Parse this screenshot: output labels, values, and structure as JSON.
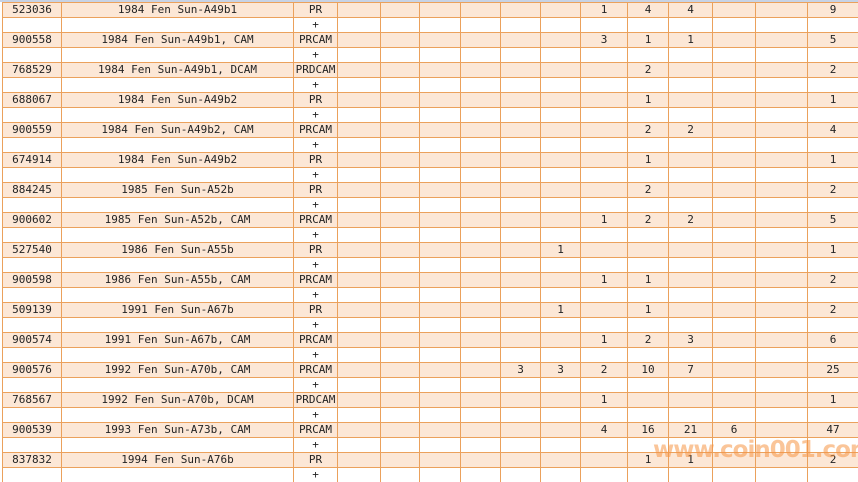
{
  "colors": {
    "row_fill": "#fce7d6",
    "grid_border": "#eba15c",
    "text": "#232323",
    "watermark": "#f79646",
    "top_strip": "#c7d3e6"
  },
  "watermark": {
    "text": "www.coin001.com"
  },
  "table": {
    "plus_symbol": "+",
    "numeric_column_count": 11,
    "records": [
      {
        "id": "523036",
        "description": "1984 Fen Sun-A49b1",
        "grade": "PR",
        "counts": [
          "",
          "",
          "",
          "",
          "",
          "",
          "1",
          "4",
          "4",
          "",
          ""
        ],
        "total": "9"
      },
      {
        "id": "900558",
        "description": "1984 Fen Sun-A49b1, CAM",
        "grade": "PRCAM",
        "counts": [
          "",
          "",
          "",
          "",
          "",
          "",
          "3",
          "1",
          "1",
          "",
          ""
        ],
        "total": "5"
      },
      {
        "id": "768529",
        "description": "1984 Fen Sun-A49b1, DCAM",
        "grade": "PRDCAM",
        "counts": [
          "",
          "",
          "",
          "",
          "",
          "",
          "",
          "2",
          "",
          "",
          ""
        ],
        "total": "2"
      },
      {
        "id": "688067",
        "description": "1984 Fen Sun-A49b2",
        "grade": "PR",
        "counts": [
          "",
          "",
          "",
          "",
          "",
          "",
          "",
          "1",
          "",
          "",
          ""
        ],
        "total": "1"
      },
      {
        "id": "900559",
        "description": "1984 Fen Sun-A49b2, CAM",
        "grade": "PRCAM",
        "counts": [
          "",
          "",
          "",
          "",
          "",
          "",
          "",
          "2",
          "2",
          "",
          ""
        ],
        "total": "4"
      },
      {
        "id": "674914",
        "description": "1984 Fen Sun-A49b2",
        "grade": "PR",
        "counts": [
          "",
          "",
          "",
          "",
          "",
          "",
          "",
          "1",
          "",
          "",
          ""
        ],
        "total": "1"
      },
      {
        "id": "884245",
        "description": "1985 Fen Sun-A52b",
        "grade": "PR",
        "counts": [
          "",
          "",
          "",
          "",
          "",
          "",
          "",
          "2",
          "",
          "",
          ""
        ],
        "total": "2"
      },
      {
        "id": "900602",
        "description": "1985 Fen Sun-A52b, CAM",
        "grade": "PRCAM",
        "counts": [
          "",
          "",
          "",
          "",
          "",
          "",
          "1",
          "2",
          "2",
          "",
          ""
        ],
        "total": "5"
      },
      {
        "id": "527540",
        "description": "1986 Fen Sun-A55b",
        "grade": "PR",
        "counts": [
          "",
          "",
          "",
          "",
          "",
          "1",
          "",
          "",
          "",
          "",
          ""
        ],
        "total": "1"
      },
      {
        "id": "900598",
        "description": "1986 Fen Sun-A55b, CAM",
        "grade": "PRCAM",
        "counts": [
          "",
          "",
          "",
          "",
          "",
          "",
          "1",
          "1",
          "",
          "",
          ""
        ],
        "total": "2"
      },
      {
        "id": "509139",
        "description": "1991 Fen Sun-A67b",
        "grade": "PR",
        "counts": [
          "",
          "",
          "",
          "",
          "",
          "1",
          "",
          "1",
          "",
          "",
          ""
        ],
        "total": "2"
      },
      {
        "id": "900574",
        "description": "1991 Fen Sun-A67b, CAM",
        "grade": "PRCAM",
        "counts": [
          "",
          "",
          "",
          "",
          "",
          "",
          "1",
          "2",
          "3",
          "",
          ""
        ],
        "total": "6"
      },
      {
        "id": "900576",
        "description": "1992 Fen Sun-A70b, CAM",
        "grade": "PRCAM",
        "counts": [
          "",
          "",
          "",
          "",
          "3",
          "3",
          "2",
          "10",
          "7",
          "",
          ""
        ],
        "total": "25"
      },
      {
        "id": "768567",
        "description": "1992 Fen Sun-A70b, DCAM",
        "grade": "PRDCAM",
        "counts": [
          "",
          "",
          "",
          "",
          "",
          "",
          "1",
          "",
          "",
          "",
          ""
        ],
        "total": "1"
      },
      {
        "id": "900539",
        "description": "1993 Fen Sun-A73b, CAM",
        "grade": "PRCAM",
        "counts": [
          "",
          "",
          "",
          "",
          "",
          "",
          "4",
          "16",
          "21",
          "6",
          ""
        ],
        "total": "47"
      },
      {
        "id": "837832",
        "description": "1994 Fen Sun-A76b",
        "grade": "PR",
        "counts": [
          "",
          "",
          "",
          "",
          "",
          "",
          "",
          "1",
          "1",
          "",
          ""
        ],
        "total": "2"
      }
    ]
  }
}
